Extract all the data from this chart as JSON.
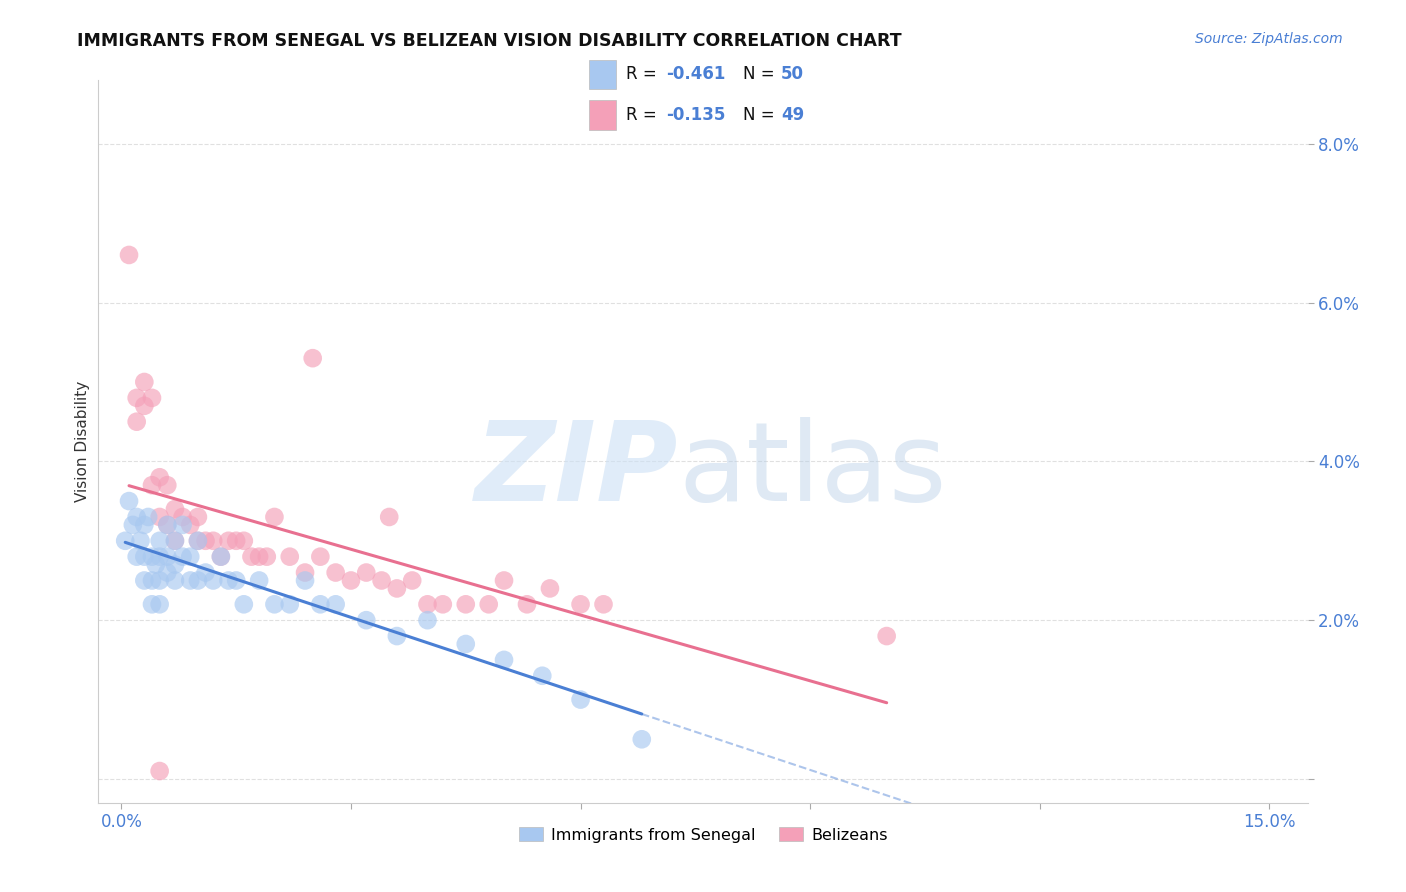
{
  "title": "IMMIGRANTS FROM SENEGAL VS BELIZEAN VISION DISABILITY CORRELATION CHART",
  "source": "Source: ZipAtlas.com",
  "ylabel_text": "Vision Disability",
  "xlim": [
    -0.003,
    0.155
  ],
  "ylim": [
    -0.003,
    0.088
  ],
  "R1": -0.461,
  "N1": 50,
  "R2": -0.135,
  "N2": 49,
  "color_blue": "#a8c8f0",
  "color_pink": "#f4a0b8",
  "line_blue": "#4a7fd4",
  "line_pink": "#e87090",
  "background_color": "#ffffff",
  "grid_color": "#dddddd",
  "legend_label1": "Immigrants from Senegal",
  "legend_label2": "Belizeans",
  "blue_x": [
    0.0005,
    0.001,
    0.0015,
    0.002,
    0.002,
    0.0025,
    0.003,
    0.003,
    0.003,
    0.0035,
    0.004,
    0.004,
    0.004,
    0.0045,
    0.005,
    0.005,
    0.005,
    0.005,
    0.006,
    0.006,
    0.006,
    0.007,
    0.007,
    0.007,
    0.008,
    0.008,
    0.009,
    0.009,
    0.01,
    0.01,
    0.011,
    0.012,
    0.013,
    0.014,
    0.015,
    0.016,
    0.018,
    0.02,
    0.022,
    0.024,
    0.026,
    0.028,
    0.032,
    0.036,
    0.04,
    0.045,
    0.05,
    0.055,
    0.06,
    0.068
  ],
  "blue_y": [
    0.03,
    0.035,
    0.032,
    0.033,
    0.028,
    0.03,
    0.032,
    0.028,
    0.025,
    0.033,
    0.028,
    0.025,
    0.022,
    0.027,
    0.03,
    0.028,
    0.025,
    0.022,
    0.032,
    0.028,
    0.026,
    0.03,
    0.027,
    0.025,
    0.032,
    0.028,
    0.028,
    0.025,
    0.03,
    0.025,
    0.026,
    0.025,
    0.028,
    0.025,
    0.025,
    0.022,
    0.025,
    0.022,
    0.022,
    0.025,
    0.022,
    0.022,
    0.02,
    0.018,
    0.02,
    0.017,
    0.015,
    0.013,
    0.01,
    0.005
  ],
  "pink_x": [
    0.001,
    0.002,
    0.002,
    0.003,
    0.003,
    0.004,
    0.004,
    0.005,
    0.005,
    0.006,
    0.006,
    0.007,
    0.007,
    0.008,
    0.009,
    0.01,
    0.01,
    0.011,
    0.012,
    0.013,
    0.014,
    0.015,
    0.016,
    0.017,
    0.018,
    0.019,
    0.02,
    0.022,
    0.024,
    0.026,
    0.028,
    0.03,
    0.032,
    0.034,
    0.036,
    0.038,
    0.04,
    0.042,
    0.045,
    0.048,
    0.05,
    0.053,
    0.056,
    0.06,
    0.063,
    0.025,
    0.035,
    0.1,
    0.005
  ],
  "pink_y": [
    0.066,
    0.048,
    0.045,
    0.05,
    0.047,
    0.037,
    0.048,
    0.038,
    0.033,
    0.037,
    0.032,
    0.034,
    0.03,
    0.033,
    0.032,
    0.033,
    0.03,
    0.03,
    0.03,
    0.028,
    0.03,
    0.03,
    0.03,
    0.028,
    0.028,
    0.028,
    0.033,
    0.028,
    0.026,
    0.028,
    0.026,
    0.025,
    0.026,
    0.025,
    0.024,
    0.025,
    0.022,
    0.022,
    0.022,
    0.022,
    0.025,
    0.022,
    0.024,
    0.022,
    0.022,
    0.053,
    0.033,
    0.018,
    0.001
  ]
}
